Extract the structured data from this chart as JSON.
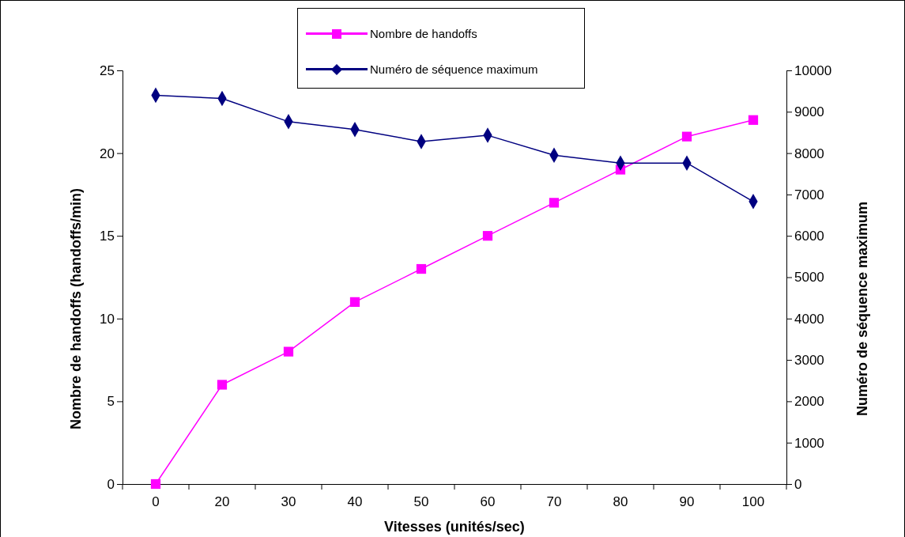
{
  "chart_data": {
    "type": "line",
    "xlabel": "Vitesses (unités/sec)",
    "ylabel": "Nombre de handoffs (handoffs/min)",
    "y2label": "Numéro de séquence maximum",
    "categories": [
      "0",
      "20",
      "30",
      "40",
      "50",
      "60",
      "70",
      "80",
      "90",
      "100"
    ],
    "series": [
      {
        "name": "Nombre de handoffs",
        "color": "#ff00ff",
        "marker": "square",
        "values": [
          0,
          6,
          8,
          11,
          13,
          15,
          17,
          19,
          21,
          22
        ]
      },
      {
        "name": "Numéro de séquence maximum",
        "color": "#000080",
        "marker": "diamond",
        "axis": "y2",
        "values": [
          9400,
          9320,
          8760,
          8570,
          8280,
          8430,
          7950,
          7760,
          7760,
          6830
        ]
      }
    ],
    "ylim": [
      0,
      25
    ],
    "yticks": [
      0,
      5,
      10,
      15,
      20,
      25
    ],
    "y2lim": [
      0,
      10000
    ],
    "y2ticks": [
      0,
      1000,
      2000,
      3000,
      4000,
      5000,
      6000,
      7000,
      8000,
      9000,
      10000
    ],
    "grid": false,
    "legend": "top"
  }
}
